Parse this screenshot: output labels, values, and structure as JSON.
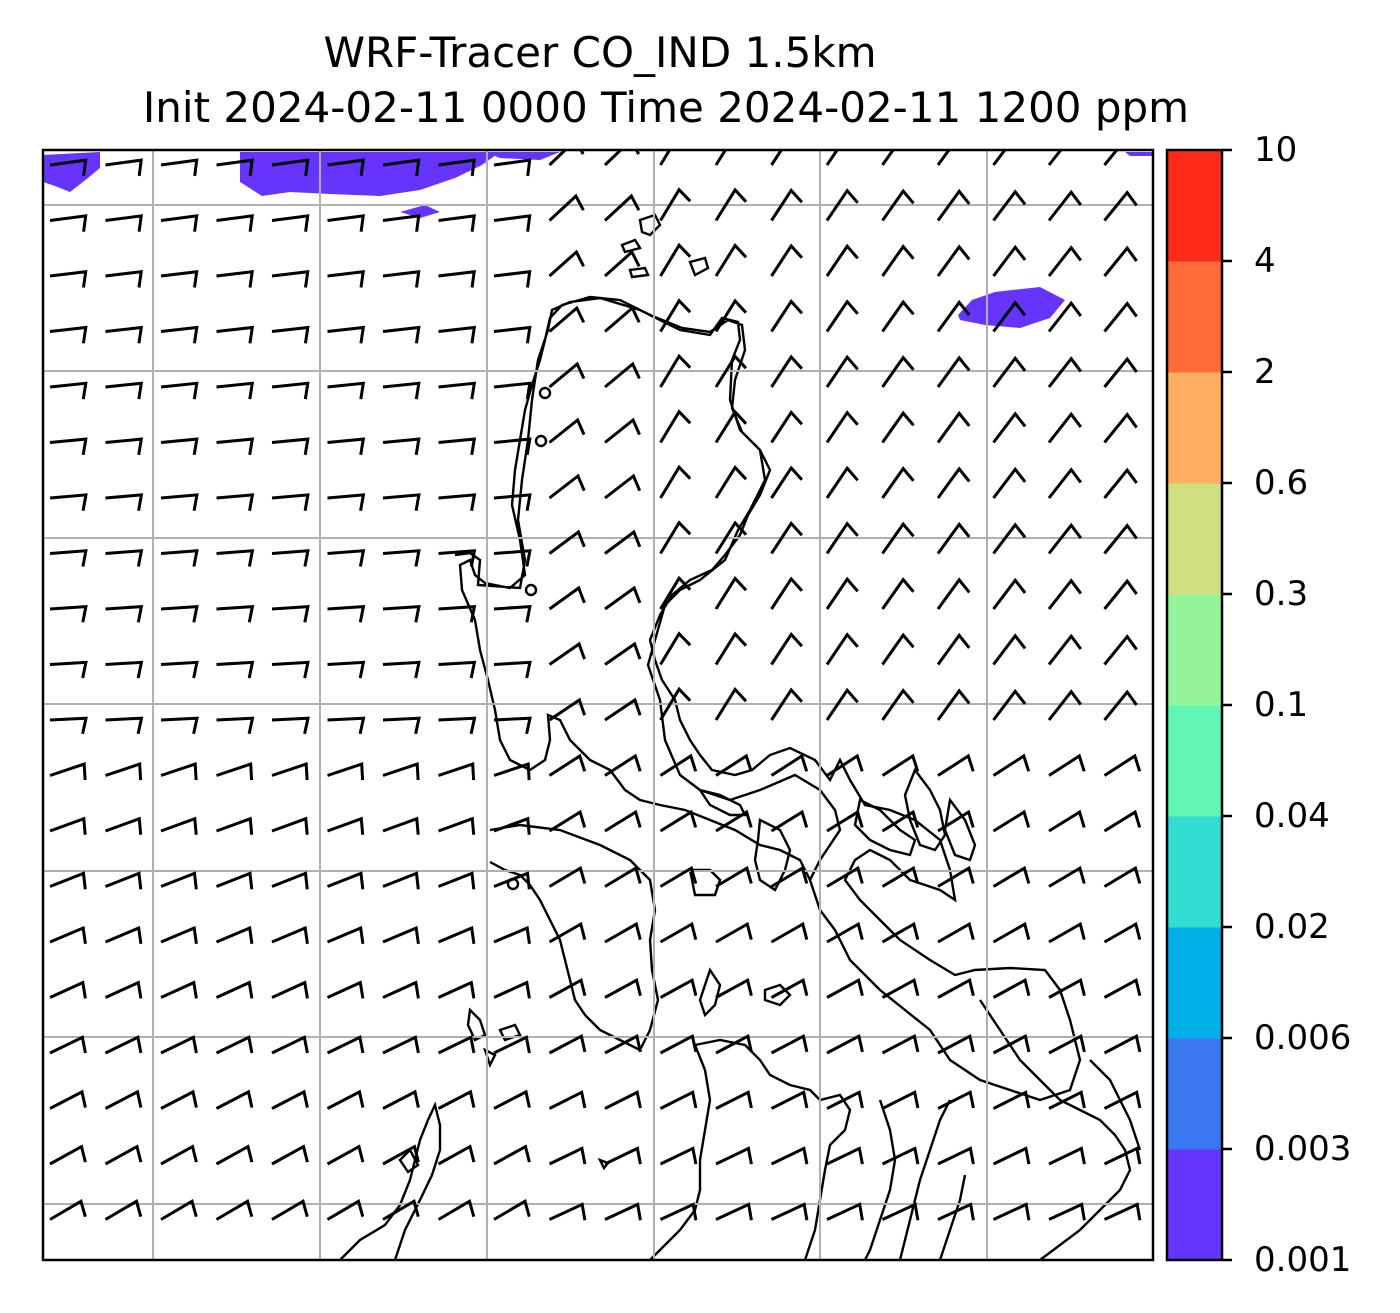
{
  "title": {
    "line1": "WRF-Tracer CO_IND 1.5km",
    "line2": "Init 2024-02-11 0000 Time 2024-02-11 1200 ppm"
  },
  "colorbar": {
    "levels": [
      "0.001",
      "0.003",
      "0.006",
      "0.02",
      "0.04",
      "0.1",
      "0.3",
      "0.6",
      "2",
      "4",
      "10"
    ],
    "colors": [
      "#6633ff",
      "#3a78f0",
      "#02b0e8",
      "#32dcd0",
      "#62f6b6",
      "#94f49a",
      "#d0e080",
      "#fdae61",
      "#ff6b3a",
      "#ff2a1a"
    ]
  },
  "map": {
    "plume_color": "#6633ff",
    "coast_color": "#000000",
    "grid_color": "#b0b0b0"
  }
}
